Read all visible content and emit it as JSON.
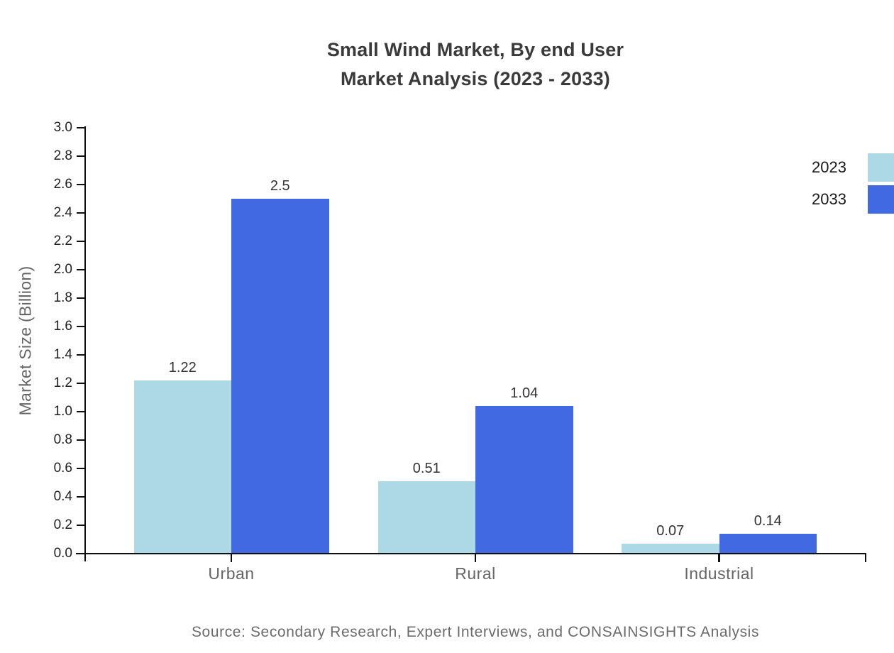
{
  "title": {
    "line1": "Small Wind Market, By end User",
    "line2": "Market Analysis (2023 - 2033)"
  },
  "source": "Source: Secondary Research, Expert Interviews, and CONSAINSIGHTS Analysis",
  "chart_data": {
    "type": "bar",
    "title": "Small Wind Market, By end User Market Analysis (2023 - 2033)",
    "categories": [
      "Urban",
      "Rural",
      "Industrial"
    ],
    "series": [
      {
        "name": "2023",
        "color": "#add8e6",
        "values": [
          1.22,
          0.51,
          0.07
        ]
      },
      {
        "name": "2033",
        "color": "#4169e1",
        "values": [
          2.5,
          1.04,
          0.14
        ]
      }
    ],
    "xlabel": "",
    "ylabel": "Market Size (Billion)",
    "ylim": [
      0,
      3.0
    ],
    "ytick_step": 0.2,
    "yticks": [
      "0.0",
      "0.2",
      "0.4",
      "0.6",
      "0.8",
      "1.0",
      "1.2",
      "1.4",
      "1.6",
      "1.8",
      "2.0",
      "2.2",
      "2.4",
      "2.6",
      "2.8",
      "3.0"
    ],
    "grid": false,
    "legend_position": "top-right",
    "value_labels_shown": true,
    "colors": {
      "axis": "#0f0f0f",
      "title_text": "#3a3a3a",
      "tick_text": "#1f1f1f",
      "category_text": "#666666",
      "value_text": "#333333",
      "source_text": "#6b6b6b",
      "background": "#ffffff"
    }
  }
}
